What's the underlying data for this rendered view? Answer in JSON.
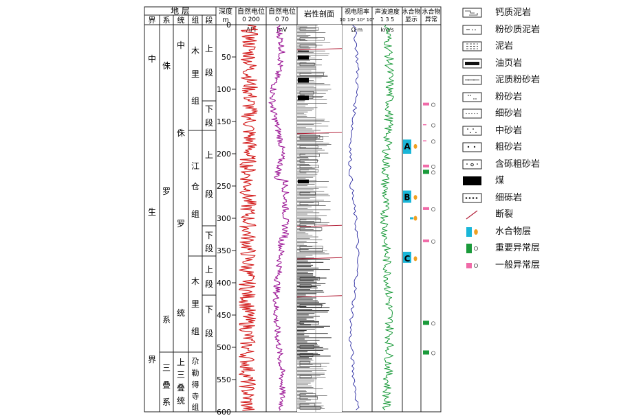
{
  "strata_header": {
    "title": "地 层",
    "columns": [
      "界",
      "系",
      "统",
      "组",
      "段"
    ]
  },
  "strata": {
    "era": [
      "中",
      "生",
      "界"
    ],
    "systems": {
      "jurassic": [
        "侏",
        "罗",
        "系"
      ],
      "triassic": [
        "三",
        "叠",
        "系"
      ]
    },
    "series": {
      "jurassic": [
        "中",
        "侏",
        "罗",
        "统"
      ],
      "triassic": [
        "上",
        "三",
        "叠",
        "统"
      ]
    },
    "formations": {
      "muli_upper": [
        "木",
        "里",
        "组"
      ],
      "jiangcang": [
        "江",
        "仓",
        "组"
      ],
      "muli_lower": [
        "木",
        "里",
        "组"
      ],
      "zoulede": [
        "尕",
        "勒",
        "得",
        "寺",
        "组"
      ]
    },
    "members": {
      "m1": [
        "上",
        "段"
      ],
      "m2": [
        "下",
        "段"
      ],
      "m3": [
        "上",
        "段"
      ],
      "m4": [
        "下",
        "段"
      ],
      "m5": [
        "上",
        "段"
      ],
      "m6": [
        "下",
        "段"
      ]
    }
  },
  "depth_header": {
    "title": "深度",
    "unit": "m"
  },
  "depth_ticks": [
    0,
    50,
    100,
    150,
    200,
    250,
    300,
    350,
    400,
    450,
    500,
    550,
    600
  ],
  "logs": {
    "gr": {
      "title": "自然电位",
      "scale": "0    200",
      "unit": "API"
    },
    "sp": {
      "title": "自然电位",
      "scale": "0    70",
      "unit": "mV"
    },
    "lith": {
      "title": "岩性剖面"
    },
    "res": {
      "title": "视电阻率",
      "scale": "10 10² 10³ 10⁴",
      "unit": "Ω·m"
    },
    "vel": {
      "title": "声波速度",
      "scale": "1    3    5",
      "unit": "km/s"
    },
    "hyd": {
      "title": "水合物",
      "title2": "显示"
    },
    "anom": {
      "title": "水合物",
      "title2": "异常"
    }
  },
  "hydrate_zones": [
    {
      "label": "A",
      "top": 178,
      "bottom": 200
    },
    {
      "label": "B",
      "top": 257,
      "bottom": 276
    },
    {
      "label": "C",
      "top": 352,
      "bottom": 369
    }
  ],
  "hydrate_small": [
    {
      "depth": 300
    }
  ],
  "anomalies": [
    {
      "depth": 123,
      "level": "general"
    },
    {
      "depth": 155,
      "level": "minor"
    },
    {
      "depth": 180,
      "level": "minor"
    },
    {
      "depth": 219,
      "level": "general"
    },
    {
      "depth": 228,
      "level": "important"
    },
    {
      "depth": 285,
      "level": "general"
    },
    {
      "depth": 335,
      "level": "general"
    },
    {
      "depth": 462,
      "level": "important"
    },
    {
      "depth": 508,
      "level": "important"
    }
  ],
  "faults": [
    38,
    168,
    312,
    362,
    421
  ],
  "legend": [
    {
      "label": "钙质泥岩",
      "symbol": "calc-mudstone"
    },
    {
      "label": "粉砂质泥岩",
      "symbol": "silty-mudstone"
    },
    {
      "label": "泥岩",
      "symbol": "mudstone"
    },
    {
      "label": "油页岩",
      "symbol": "oil-shale"
    },
    {
      "label": "泥质粉砂岩",
      "symbol": "muddy-siltstone"
    },
    {
      "label": "粉砂岩",
      "symbol": "siltstone"
    },
    {
      "label": "细砂岩",
      "symbol": "fine-sandstone"
    },
    {
      "label": "中砂岩",
      "symbol": "medium-sandstone"
    },
    {
      "label": "粗砂岩",
      "symbol": "coarse-sandstone"
    },
    {
      "label": "含砾粗砂岩",
      "symbol": "pebbly-sandstone"
    },
    {
      "label": "煤",
      "symbol": "coal"
    },
    {
      "label": "细砾岩",
      "symbol": "fine-conglomerate"
    },
    {
      "label": "断裂",
      "symbol": "fault"
    },
    {
      "label": "水合物层",
      "symbol": "hydrate-layer"
    },
    {
      "label": "重要异常层",
      "symbol": "important-anomaly"
    },
    {
      "label": "一般异常层",
      "symbol": "general-anomaly"
    }
  ],
  "colors": {
    "gr": "#d42020",
    "sp": "#a0209a",
    "res": "#2a2aa0",
    "vel": "#1a9a3a",
    "hydrate": "#19b6d8",
    "important": "#1a9a3a",
    "general": "#f06aa8",
    "fault": "#b3223a"
  }
}
